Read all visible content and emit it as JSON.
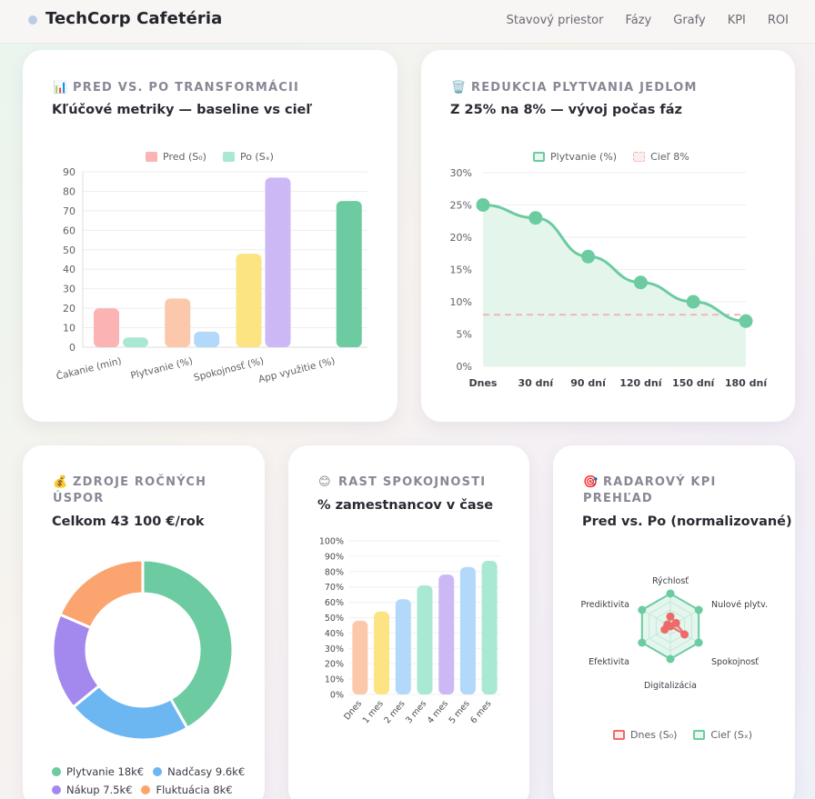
{
  "nav": {
    "brand": "TechCorp Cafetéria",
    "links": [
      "Stavový priestor",
      "Fázy",
      "Grafy",
      "KPI",
      "ROI"
    ]
  },
  "colors": {
    "accent_green": "#6ccba0",
    "pink": "#fbb3b3",
    "peach": "#fcc8ab",
    "yellow": "#fde483",
    "purple": "#cdb8f6",
    "blue": "#b2d8fa",
    "mint": "#a9e8d2",
    "red": "#ee6a6a"
  },
  "cards": {
    "before_after": {
      "icon": "📊",
      "label": "PRED VS. PO TRANSFORMÁCII",
      "title": "Kľúčové metriky — baseline vs cieľ"
    },
    "waste": {
      "icon": "🗑️",
      "label": "REDUKCIA PLYTVANIA JEDLOM",
      "title": "Z 25% na 8% — vývoj počas fáz"
    },
    "savings": {
      "icon": "💰",
      "label": "ZDROJE ROČNÝCH ÚSPOR",
      "title": "Celkom 43 100 €/rok"
    },
    "satisfaction": {
      "icon": "😊",
      "label": "RAST SPOKOJNOSTI",
      "title": "% zamestnancov v čase"
    },
    "radar": {
      "icon": "🎯",
      "label": "RADAROVÝ KPI PREHĽAD",
      "title": "Pred vs. Po (normalizované)"
    }
  },
  "chart_data": [
    {
      "type": "bar",
      "id": "before_after",
      "categories": [
        "Čakanie (min)",
        "Plytvanie (%)",
        "Spokojnosť (%)",
        "App využitie (%)"
      ],
      "series": [
        {
          "name": "Pred (S₀)",
          "values": [
            20,
            25,
            48,
            0
          ]
        },
        {
          "name": "Po (Sₓ)",
          "values": [
            5,
            8,
            87,
            75
          ]
        }
      ],
      "ylim": [
        0,
        90
      ],
      "yticks": [
        0,
        10,
        20,
        30,
        40,
        50,
        60,
        70,
        80,
        90
      ],
      "legend": [
        "Pred (S₀)",
        "Po (Sₓ)"
      ]
    },
    {
      "type": "line",
      "id": "waste",
      "x": [
        "Dnes",
        "30 dní",
        "90 dní",
        "120 dní",
        "150 dní",
        "180 dní"
      ],
      "series": [
        {
          "name": "Plytvanie (%)",
          "values": [
            25,
            23,
            17,
            13,
            10,
            7
          ]
        },
        {
          "name": "Cieľ 8%",
          "values": [
            8,
            8,
            8,
            8,
            8,
            8
          ]
        }
      ],
      "ylim": [
        0,
        30
      ],
      "yticks": [
        "0%",
        "5%",
        "10%",
        "15%",
        "20%",
        "25%",
        "30%"
      ],
      "legend": [
        "Plytvanie (%)",
        "Cieľ 8%"
      ]
    },
    {
      "type": "pie",
      "id": "savings",
      "labels": [
        "Plytvanie 18k€",
        "Nadčasy 9.6k€",
        "Nákup 7.5k€",
        "Fluktuácia 8k€"
      ],
      "values": [
        18,
        9.6,
        7.5,
        8
      ],
      "colors": [
        "#6ccba0",
        "#6cb6f2",
        "#a388ee",
        "#fba46f"
      ]
    },
    {
      "type": "bar",
      "id": "satisfaction",
      "categories": [
        "Dnes",
        "1 mes",
        "2 mes",
        "3 mes",
        "4 mes",
        "5 mes",
        "6 mes"
      ],
      "values": [
        48,
        54,
        62,
        71,
        78,
        83,
        87
      ],
      "ylim": [
        0,
        100
      ],
      "yticks": [
        "0%",
        "10%",
        "20%",
        "30%",
        "40%",
        "50%",
        "60%",
        "70%",
        "80%",
        "90%",
        "100%"
      ],
      "colors": [
        "#fcc8ab",
        "#fde483",
        "#b2d8fa",
        "#a9e8d2",
        "#cdb8f6",
        "#b2d8fa",
        "#a9e8d2"
      ]
    },
    {
      "type": "radar",
      "id": "radar",
      "axes": [
        "Rýchlosť",
        "Nulové plytv.",
        "Spokojnosť",
        "Digitalizácia",
        "Efektivita",
        "Prediktivita"
      ],
      "series": [
        {
          "name": "Dnes (S₀)",
          "values": [
            0.3,
            0.2,
            0.5,
            0.0,
            0.2,
            0.1
          ]
        },
        {
          "name": "Cieľ (Sₓ)",
          "values": [
            1.0,
            1.0,
            1.0,
            1.0,
            1.0,
            1.0
          ]
        }
      ],
      "legend": [
        "Dnes (S₀)",
        "Cieľ (Sₓ)"
      ]
    }
  ]
}
